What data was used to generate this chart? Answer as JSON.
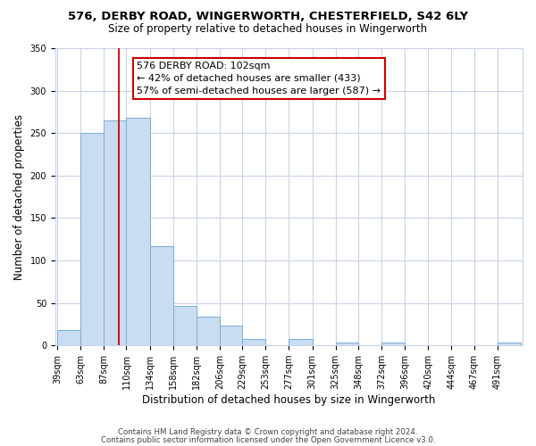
{
  "title": "576, DERBY ROAD, WINGERWORTH, CHESTERFIELD, S42 6LY",
  "subtitle": "Size of property relative to detached houses in Wingerworth",
  "xlabel": "Distribution of detached houses by size in Wingerworth",
  "ylabel": "Number of detached properties",
  "bar_edges": [
    39,
    63,
    87,
    110,
    134,
    158,
    182,
    206,
    229,
    253,
    277,
    301,
    325,
    348,
    372,
    396,
    420,
    444,
    467,
    491,
    515
  ],
  "bar_heights": [
    18,
    250,
    265,
    268,
    117,
    46,
    34,
    23,
    8,
    0,
    8,
    0,
    3,
    0,
    3,
    0,
    0,
    0,
    0,
    3
  ],
  "bar_color": "#c9ddf2",
  "bar_edge_color": "#7badd4",
  "ylim": [
    0,
    350
  ],
  "yticks": [
    0,
    50,
    100,
    150,
    200,
    250,
    300,
    350
  ],
  "property_line_x": 102,
  "property_line_color": "#cc0000",
  "annotation_title": "576 DERBY ROAD: 102sqm",
  "annotation_line1": "← 42% of detached houses are smaller (433)",
  "annotation_line2": "57% of semi-detached houses are larger (587) →",
  "annotation_box_color": "#ffffff",
  "annotation_box_edge_color": "#cc0000",
  "footer_line1": "Contains HM Land Registry data © Crown copyright and database right 2024.",
  "footer_line2": "Contains public sector information licensed under the Open Government Licence v3.0.",
  "background_color": "#ffffff",
  "grid_color": "#c8d4e8",
  "title_fontsize": 9.5,
  "subtitle_fontsize": 8.5,
  "ylabel_fontsize": 8.5,
  "xlabel_fontsize": 8.5,
  "tick_fontsize": 7,
  "annotation_fontsize": 8.0,
  "footer_fontsize": 6.2
}
